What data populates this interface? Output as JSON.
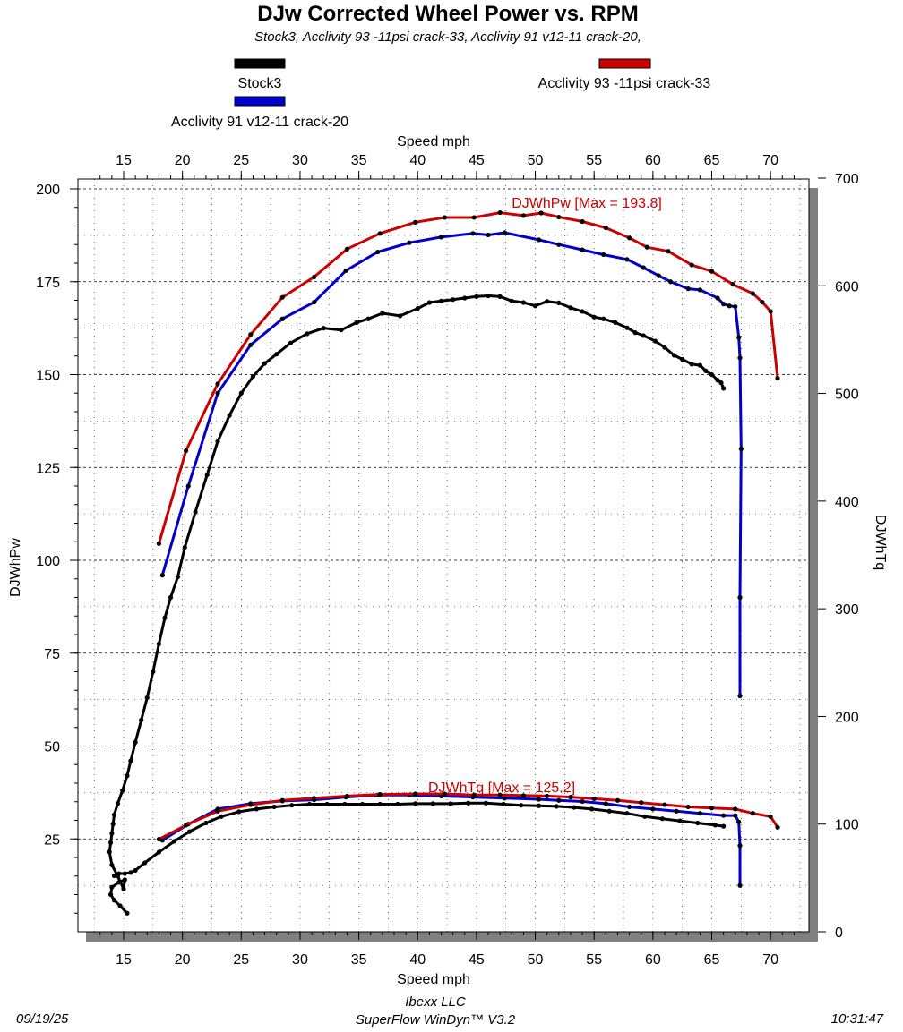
{
  "header": {
    "title": "DJw Corrected Wheel Power vs. RPM",
    "subtitle": "Stock3, Acclivity 93 -11psi crack-33, Acclivity 91 v12-11 crack-20,"
  },
  "footer": {
    "date": "09/19/25",
    "company": "Ibexx LLC",
    "software": "SuperFlow WinDyn™ V3.2",
    "time": "10:31:47"
  },
  "colors": {
    "stock": "#000000",
    "acc93": "#cc0000",
    "acc91": "#0000cc"
  },
  "chart_data": {
    "type": "line",
    "title": "DJw Corrected Wheel Power vs. RPM",
    "xlabel": "Speed  mph",
    "xlabel_top": "Speed  mph",
    "ylabel_left": "DJWhPw",
    "ylabel_right": "DJWhTq",
    "xlim": [
      12.5,
      72.5
    ],
    "ylim_left": [
      0,
      200
    ],
    "ylim_right": [
      0,
      700
    ],
    "x_ticks": [
      "15",
      "20",
      "25",
      "30",
      "35",
      "40",
      "45",
      "50",
      "55",
      "60",
      "65",
      "70"
    ],
    "y_left_ticks": [
      "25",
      "50",
      "75",
      "100",
      "125",
      "150",
      "175",
      "200"
    ],
    "y_right_ticks": [
      "0",
      "100",
      "200",
      "300",
      "400",
      "500",
      "600",
      "700"
    ],
    "legend": [
      {
        "name": "Stock3",
        "color": "#000000"
      },
      {
        "name": "Acclivity 93 -11psi crack-33",
        "color": "#cc0000"
      },
      {
        "name": "Acclivity 91 v12-11 crack-20",
        "color": "#0000cc"
      }
    ],
    "annotations": {
      "power_max": "DJWhPw [Max = 193.8]",
      "torque_max": "DJWhTq [Max = 125.2]"
    },
    "series": [
      {
        "name": "Acclivity 93 -11psi crack-33 power",
        "color": "#cc0000",
        "axis": "left",
        "x": [
          18.0,
          20.3,
          23.0,
          25.8,
          28.5,
          31.2,
          34.0,
          36.8,
          39.8,
          42.3,
          44.8,
          47.0,
          49.0,
          50.5,
          52.0,
          54.0,
          56.0,
          58.0,
          59.5,
          61.3,
          63.3,
          65.0,
          66.8,
          68.5,
          69.3,
          70.0,
          70.6
        ],
        "y": [
          104.5,
          129.5,
          147.5,
          160.8,
          170.8,
          176.3,
          183.8,
          188.0,
          191.0,
          192.3,
          192.3,
          193.6,
          192.8,
          193.5,
          192.4,
          191.2,
          189.5,
          186.8,
          184.3,
          183.2,
          179.5,
          177.8,
          174.3,
          171.8,
          169.5,
          167.0,
          149.0
        ]
      },
      {
        "name": "Acclivity 91 v12-11 crack-20 power",
        "color": "#0000cc",
        "axis": "left",
        "x": [
          18.3,
          20.5,
          23.0,
          25.8,
          28.5,
          31.2,
          33.9,
          36.6,
          39.3,
          42.0,
          44.7,
          46.0,
          47.4,
          50.3,
          52.0,
          54.0,
          55.8,
          57.8,
          59.2,
          60.5,
          61.5,
          63.0,
          64.0,
          65.5,
          66.0,
          66.5,
          67.0,
          67.3,
          67.4,
          67.5,
          67.4,
          67.4
        ],
        "y": [
          96.0,
          120.0,
          145.0,
          158.0,
          165.0,
          169.5,
          178.0,
          183.0,
          185.5,
          187.0,
          188.0,
          187.6,
          188.2,
          186.3,
          185.0,
          183.6,
          182.3,
          181.0,
          178.8,
          176.6,
          175.0,
          173.1,
          172.8,
          170.6,
          169.0,
          168.5,
          168.3,
          160.0,
          154.5,
          130.0,
          90.0,
          63.5
        ]
      },
      {
        "name": "Stock3 power",
        "color": "#000000",
        "axis": "left",
        "x": [
          15.3,
          14.7,
          14.2,
          13.9,
          14.0,
          14.6,
          15.1,
          15.0,
          14.5,
          14.0,
          13.8,
          13.9,
          14.0,
          14.1,
          14.2,
          14.5,
          14.9,
          15.3,
          15.6,
          16.0,
          16.5,
          17.0,
          17.5,
          18.0,
          18.5,
          19.0,
          19.6,
          20.2,
          21.1,
          22.1,
          23.0,
          24.0,
          25.0,
          26.0,
          27.0,
          28.0,
          29.2,
          30.6,
          32.0,
          33.5,
          34.8,
          35.8,
          37.0,
          38.5,
          40.0,
          41.0,
          42.0,
          43.0,
          44.0,
          45.0,
          46.0,
          47.0,
          48.0,
          49.0,
          50.0,
          51.0,
          52.0,
          53.0,
          54.0,
          55.0,
          55.8,
          56.8,
          57.8,
          58.5,
          59.2,
          60.2,
          61.0,
          61.8,
          62.5,
          63.3,
          64.0,
          64.5,
          65.0,
          65.5,
          65.8,
          66.0
        ],
        "y": [
          5.0,
          7.0,
          8.5,
          10.0,
          12.0,
          13.3,
          14.0,
          11.5,
          15.0,
          18.0,
          21.5,
          24.0,
          26.5,
          29.0,
          31.5,
          34.5,
          38.0,
          42.0,
          46.0,
          51.0,
          57.0,
          63.0,
          70.0,
          77.5,
          84.5,
          90.0,
          95.5,
          103.5,
          113.0,
          123.0,
          132.0,
          139.0,
          145.0,
          149.5,
          153.0,
          155.5,
          158.5,
          161.0,
          162.5,
          162.0,
          164.0,
          165.0,
          166.5,
          165.8,
          167.8,
          169.4,
          169.8,
          170.2,
          170.6,
          171.0,
          171.2,
          171.0,
          169.8,
          169.4,
          168.5,
          169.7,
          169.3,
          168.0,
          167.0,
          165.5,
          165.0,
          164.0,
          162.6,
          161.3,
          160.5,
          159.0,
          157.3,
          155.2,
          154.1,
          152.8,
          152.5,
          151.0,
          150.0,
          148.5,
          147.8,
          146.3
        ]
      },
      {
        "name": "Acclivity 93 -11psi crack-33 torque",
        "color": "#cc0000",
        "axis": "right",
        "x": [
          18.0,
          20.3,
          23.0,
          25.8,
          28.5,
          31.2,
          34.0,
          36.8,
          39.8,
          42.3,
          44.8,
          47.0,
          49.0,
          51.0,
          53.0,
          55.0,
          57.0,
          59.0,
          61.0,
          63.0,
          65.0,
          67.0,
          68.5,
          70.0,
          70.6
        ],
        "y": [
          86,
          99,
          112,
          118,
          122,
          124,
          126,
          127.5,
          128,
          128,
          127,
          127,
          126.5,
          126,
          125,
          123.5,
          122,
          120,
          118,
          116,
          115,
          114,
          110,
          107,
          97
        ]
      },
      {
        "name": "Acclivity 91 v12-11 crack-20 torque",
        "color": "#0000cc",
        "axis": "right",
        "x": [
          18.3,
          20.5,
          23.0,
          25.8,
          28.5,
          31.2,
          33.9,
          36.6,
          39.3,
          42.0,
          44.7,
          47.4,
          50.3,
          52.0,
          54.0,
          56.0,
          58.0,
          60.0,
          62.0,
          64.0,
          66.0,
          67.0,
          67.3,
          67.4,
          67.4
        ],
        "y": [
          85,
          100,
          114,
          119,
          121.5,
          122.5,
          125,
          127,
          127,
          126,
          125,
          124,
          123,
          122,
          121,
          119,
          116,
          114,
          112,
          110,
          108,
          108,
          102,
          80,
          43
        ]
      },
      {
        "name": "Stock3 torque",
        "color": "#000000",
        "axis": "right",
        "x": [
          14.2,
          14.6,
          15.1,
          15.6,
          16.0,
          16.8,
          18.0,
          19.3,
          20.6,
          22.0,
          23.3,
          24.8,
          26.3,
          27.8,
          29.3,
          30.8,
          32.3,
          33.8,
          35.3,
          36.8,
          38.3,
          39.8,
          41.3,
          42.8,
          44.3,
          45.8,
          47.3,
          48.8,
          50.3,
          51.8,
          53.3,
          54.8,
          56.3,
          57.8,
          59.3,
          60.8,
          62.3,
          63.8,
          65.3,
          66.0
        ],
        "y": [
          52,
          54,
          54,
          55,
          57,
          64,
          74,
          84,
          93,
          101,
          107,
          111.5,
          114,
          116,
          117.5,
          118.5,
          118.5,
          118.5,
          118.5,
          118.5,
          118.5,
          119,
          119,
          119,
          119.5,
          119.5,
          118.5,
          117.5,
          117,
          116.5,
          115.5,
          114,
          112,
          110,
          107,
          105,
          103,
          101,
          99,
          98
        ]
      }
    ]
  }
}
